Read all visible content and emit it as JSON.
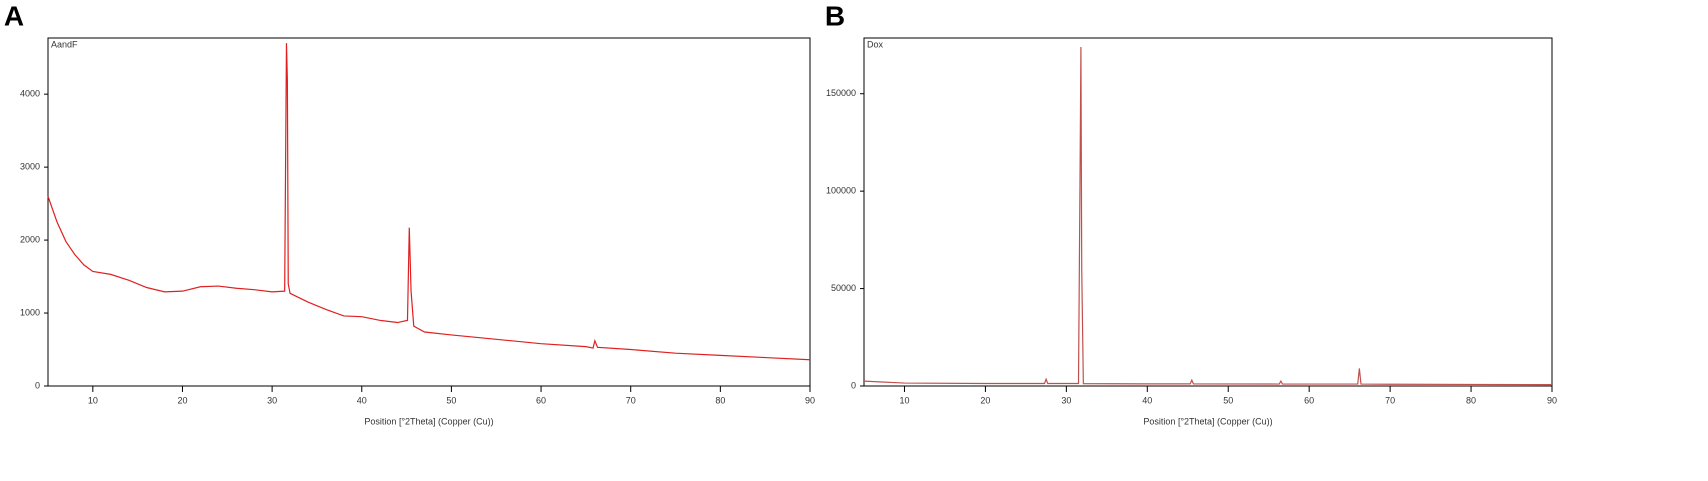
{
  "chart_data": [
    {
      "type": "line",
      "panel_label": "A",
      "xlabel": "Position [°2Theta] (Copper (Cu))",
      "x": [
        5,
        6,
        7,
        8,
        9,
        10,
        12,
        14,
        16,
        18,
        20,
        22,
        24,
        26,
        28,
        30,
        31.4,
        31.6,
        31.7,
        31.8,
        32,
        34,
        36,
        38,
        40,
        42,
        44,
        45.1,
        45.3,
        45.5,
        45.8,
        47,
        50,
        55,
        60,
        65,
        65.8,
        66,
        66.3,
        70,
        75,
        80,
        85,
        90
      ],
      "series": [
        {
          "name": "AandF",
          "color": "#e02020",
          "values": [
            2600,
            2250,
            1980,
            1800,
            1660,
            1570,
            1530,
            1450,
            1350,
            1290,
            1300,
            1360,
            1370,
            1340,
            1320,
            1290,
            1300,
            4700,
            4200,
            1400,
            1270,
            1150,
            1050,
            960,
            950,
            900,
            870,
            900,
            2170,
            1300,
            820,
            740,
            700,
            640,
            580,
            540,
            520,
            620,
            530,
            500,
            450,
            420,
            390,
            360
          ]
        }
      ],
      "xlim": [
        5,
        90
      ],
      "xticks": [
        10,
        20,
        30,
        40,
        50,
        60,
        70,
        80,
        90
      ],
      "ylim": [
        0,
        4770
      ],
      "yticks": [
        0,
        1000,
        2000,
        3000,
        4000
      ]
    },
    {
      "type": "line",
      "panel_label": "B",
      "xlabel": "Position [°2Theta] (Copper (Cu))",
      "x": [
        5,
        10,
        20,
        27.3,
        27.5,
        27.7,
        31.5,
        31.7,
        31.8,
        31.9,
        32.1,
        40,
        45.3,
        45.5,
        45.7,
        56.3,
        56.5,
        56.7,
        66,
        66.2,
        66.4,
        70,
        80,
        90
      ],
      "series": [
        {
          "name": "Dox",
          "color": "#c0504d",
          "values": [
            2500,
            1500,
            1300,
            1300,
            3500,
            1300,
            1300,
            113000,
            174000,
            60000,
            1200,
            1100,
            1100,
            3000,
            1100,
            1000,
            2500,
            1000,
            1000,
            9000,
            1000,
            900,
            800,
            700
          ]
        }
      ],
      "xlim": [
        5,
        90
      ],
      "xticks": [
        10,
        20,
        30,
        40,
        50,
        60,
        70,
        80,
        90
      ],
      "ylim": [
        0,
        178600
      ],
      "yticks": [
        0,
        50000,
        100000,
        150000
      ]
    }
  ]
}
